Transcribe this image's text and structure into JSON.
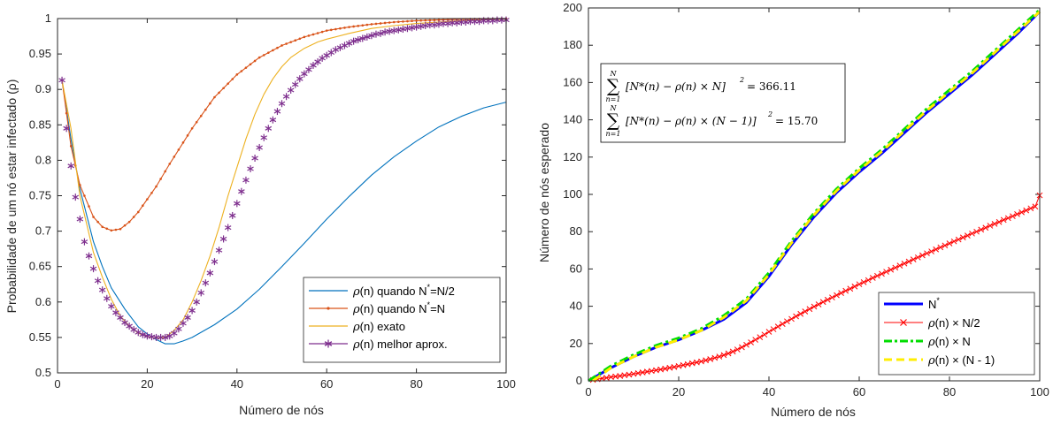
{
  "chart_data": [
    {
      "type": "line",
      "xlabel": "Número de nós",
      "ylabel": "Probabilidade de um nó estar infectado (ρ)",
      "xlim": [
        0,
        100
      ],
      "ylim": [
        0.5,
        1
      ],
      "x_ticks": [
        "0",
        "20",
        "40",
        "60",
        "80",
        "100"
      ],
      "y_ticks": [
        "0.5",
        "0.55",
        "0.6",
        "0.65",
        "0.7",
        "0.75",
        "0.8",
        "0.85",
        "0.9",
        "0.95",
        "1"
      ],
      "legend_position": "bottom-right",
      "series": [
        {
          "name": "ρ(n) quando N*=N/2",
          "legend_text": "quando N",
          "legend_sup": "*",
          "legend_tail": "=N/2",
          "color": "#0072bd",
          "marker": "none",
          "x": [
            1,
            3,
            5,
            8,
            10,
            12,
            15,
            18,
            20,
            22,
            24,
            26,
            28,
            30,
            35,
            40,
            45,
            50,
            55,
            60,
            65,
            70,
            75,
            80,
            85,
            90,
            95,
            100
          ],
          "y": [
            0.913,
            0.83,
            0.76,
            0.685,
            0.65,
            0.62,
            0.59,
            0.565,
            0.555,
            0.547,
            0.541,
            0.541,
            0.545,
            0.55,
            0.568,
            0.59,
            0.618,
            0.65,
            0.683,
            0.717,
            0.749,
            0.779,
            0.805,
            0.827,
            0.847,
            0.862,
            0.874,
            0.882
          ]
        },
        {
          "name": "ρ(n) quando N*=N",
          "legend_text": "quando N",
          "legend_sup": "*",
          "legend_tail": "=N",
          "color": "#d95319",
          "marker": "dot",
          "x": [
            1,
            3,
            5,
            8,
            10,
            12,
            14,
            16,
            18,
            20,
            22,
            25,
            28,
            30,
            35,
            40,
            45,
            50,
            55,
            60,
            65,
            70,
            75,
            80,
            85,
            90,
            95,
            100
          ],
          "y": [
            0.913,
            0.82,
            0.765,
            0.72,
            0.706,
            0.701,
            0.703,
            0.713,
            0.727,
            0.745,
            0.763,
            0.795,
            0.825,
            0.845,
            0.889,
            0.921,
            0.945,
            0.962,
            0.974,
            0.983,
            0.988,
            0.992,
            0.995,
            0.997,
            0.998,
            0.999,
            0.9995,
            1.0
          ]
        },
        {
          "name": "ρ(n) exato",
          "legend_text": "exato",
          "legend_sup": "",
          "legend_tail": "",
          "color": "#edb120",
          "marker": "none",
          "x": [
            1,
            3,
            5,
            8,
            10,
            12,
            14,
            16,
            18,
            20,
            22,
            24,
            26,
            28,
            30,
            32,
            34,
            36,
            38,
            40,
            42,
            44,
            46,
            48,
            50,
            52,
            55,
            58,
            60,
            65,
            70,
            75,
            80,
            85,
            90,
            95,
            100
          ],
          "y": [
            0.913,
            0.845,
            0.75,
            0.67,
            0.635,
            0.604,
            0.58,
            0.566,
            0.556,
            0.551,
            0.549,
            0.55,
            0.56,
            0.575,
            0.6,
            0.63,
            0.665,
            0.705,
            0.75,
            0.79,
            0.83,
            0.865,
            0.893,
            0.915,
            0.932,
            0.945,
            0.958,
            0.967,
            0.971,
            0.979,
            0.986,
            0.99,
            0.993,
            0.995,
            0.997,
            0.998,
            0.999
          ]
        },
        {
          "name": "ρ(n) melhor aprox.",
          "legend_text": "melhor aprox.",
          "legend_sup": "",
          "legend_tail": "",
          "color": "#7e2f8e",
          "marker": "asterisk",
          "x": [
            1,
            2,
            3,
            4,
            5,
            6,
            7,
            8,
            9,
            10,
            11,
            12,
            13,
            14,
            15,
            16,
            17,
            18,
            19,
            20,
            21,
            22,
            23,
            24,
            25,
            26,
            27,
            28,
            29,
            30,
            31,
            32,
            33,
            34,
            35,
            36,
            37,
            38,
            39,
            40,
            41,
            42,
            43,
            44,
            45,
            46,
            47,
            48,
            49,
            50,
            51,
            52,
            53,
            54,
            55,
            56,
            57,
            58,
            59,
            60,
            61,
            62,
            63,
            64,
            65,
            66,
            67,
            68,
            69,
            70,
            71,
            72,
            73,
            74,
            75,
            76,
            77,
            78,
            79,
            80,
            81,
            82,
            83,
            84,
            85,
            86,
            87,
            88,
            89,
            90,
            91,
            92,
            93,
            94,
            95,
            96,
            97,
            98,
            99,
            100
          ],
          "y": [
            0.913,
            0.845,
            0.792,
            0.748,
            0.717,
            0.685,
            0.665,
            0.647,
            0.63,
            0.617,
            0.605,
            0.594,
            0.585,
            0.578,
            0.571,
            0.566,
            0.561,
            0.557,
            0.554,
            0.552,
            0.551,
            0.55,
            0.55,
            0.55,
            0.552,
            0.556,
            0.562,
            0.57,
            0.578,
            0.588,
            0.6,
            0.613,
            0.627,
            0.641,
            0.657,
            0.673,
            0.689,
            0.705,
            0.722,
            0.739,
            0.756,
            0.772,
            0.788,
            0.803,
            0.818,
            0.832,
            0.845,
            0.857,
            0.869,
            0.88,
            0.89,
            0.899,
            0.907,
            0.915,
            0.922,
            0.928,
            0.934,
            0.939,
            0.944,
            0.948,
            0.952,
            0.956,
            0.959,
            0.962,
            0.965,
            0.968,
            0.97,
            0.972,
            0.974,
            0.976,
            0.978,
            0.979,
            0.981,
            0.982,
            0.983,
            0.984,
            0.985,
            0.986,
            0.987,
            0.988,
            0.989,
            0.99,
            0.991,
            0.991,
            0.992,
            0.993,
            0.993,
            0.994,
            0.994,
            0.995,
            0.995,
            0.996,
            0.996,
            0.996,
            0.997,
            0.997,
            0.997,
            0.998,
            0.998,
            0.998
          ]
        }
      ]
    },
    {
      "type": "line",
      "xlabel": "Número de nós",
      "ylabel": "Número de nós esperado",
      "xlim": [
        0,
        100
      ],
      "ylim": [
        0,
        200
      ],
      "x_ticks": [
        "0",
        "20",
        "40",
        "60",
        "80",
        "100"
      ],
      "y_ticks": [
        "0",
        "20",
        "40",
        "60",
        "80",
        "100",
        "120",
        "140",
        "160",
        "180",
        "200"
      ],
      "legend_position": "bottom-right",
      "annotations": {
        "sum1_value": "= 366.11",
        "sum2_value": "= 15.70",
        "sum1_body": "[N*(n) − ρ(n) × N]",
        "sum2_body": "[N*(n) − ρ(n) × (N − 1)]",
        "sigma": "∑",
        "upper": "N",
        "lower": "n=1",
        "square": "2"
      },
      "series": [
        {
          "name": "N*",
          "legend_text": "N",
          "legend_sup": "*",
          "color": "#0000ff",
          "dash": "solid",
          "width": 3,
          "marker": "none",
          "x": [
            0,
            5,
            10,
            15,
            20,
            25,
            30,
            35,
            40,
            45,
            50,
            55,
            60,
            65,
            70,
            75,
            80,
            85,
            90,
            95,
            100
          ],
          "y": [
            0,
            7,
            13,
            18,
            22,
            27,
            33,
            42,
            56,
            73,
            88,
            101,
            112,
            122,
            133,
            144,
            154,
            164,
            175,
            186,
            198
          ]
        },
        {
          "name": "ρ(n) × N/2",
          "legend_text": "ρ(n)  × N/2",
          "legend_sup": "",
          "color": "#ff0000",
          "dash": "solid",
          "width": 1,
          "marker": "x",
          "x": [
            1,
            2,
            3,
            4,
            5,
            6,
            7,
            8,
            9,
            10,
            11,
            12,
            13,
            14,
            15,
            16,
            17,
            18,
            19,
            20,
            21,
            22,
            23,
            24,
            25,
            26,
            27,
            28,
            29,
            30,
            31,
            32,
            33,
            34,
            35,
            36,
            37,
            38,
            39,
            40,
            41,
            42,
            43,
            44,
            45,
            46,
            47,
            48,
            49,
            50,
            51,
            52,
            53,
            54,
            55,
            56,
            57,
            58,
            59,
            60,
            61,
            62,
            63,
            64,
            65,
            66,
            67,
            68,
            69,
            70,
            71,
            72,
            73,
            74,
            75,
            76,
            77,
            78,
            79,
            80,
            81,
            82,
            83,
            84,
            85,
            86,
            87,
            88,
            89,
            90,
            91,
            92,
            93,
            94,
            95,
            96,
            97,
            98,
            99,
            100
          ],
          "y": [
            0.5,
            0.9,
            1.3,
            1.6,
            2.0,
            2.3,
            2.6,
            3.0,
            3.3,
            3.7,
            4.1,
            4.5,
            4.9,
            5.3,
            5.7,
            6.1,
            6.5,
            7.0,
            7.4,
            7.9,
            8.4,
            8.9,
            9.4,
            9.9,
            10.4,
            11.0,
            11.6,
            12.3,
            13.0,
            13.8,
            14.7,
            15.7,
            16.8,
            18.0,
            19.3,
            20.6,
            22.0,
            23.4,
            24.8,
            26.3,
            27.7,
            29.1,
            30.5,
            31.9,
            33.2,
            34.6,
            35.9,
            37.2,
            38.5,
            39.8,
            41.0,
            42.3,
            43.5,
            44.7,
            45.9,
            47.1,
            48.3,
            49.4,
            50.6,
            51.8,
            52.9,
            54.0,
            55.2,
            56.3,
            57.4,
            58.5,
            59.6,
            60.7,
            61.8,
            62.9,
            64.0,
            65.1,
            66.2,
            67.3,
            68.4,
            69.4,
            70.5,
            71.6,
            72.6,
            73.7,
            74.8,
            75.8,
            76.9,
            77.9,
            79.0,
            80.0,
            81.1,
            82.1,
            83.2,
            84.2,
            85.2,
            86.3,
            87.3,
            88.3,
            89.4,
            90.4,
            91.4,
            92.5,
            93.5,
            99.5
          ]
        },
        {
          "name": "ρ(n) × N",
          "legend_text": "ρ(n)  × N",
          "legend_sup": "",
          "color": "#00dd00",
          "dash": "dashdot",
          "width": 3,
          "marker": "none",
          "x": [
            0,
            5,
            10,
            15,
            20,
            25,
            30,
            35,
            40,
            45,
            50,
            55,
            60,
            65,
            70,
            75,
            80,
            85,
            90,
            95,
            100
          ],
          "y": [
            0,
            8,
            14,
            19,
            23,
            28,
            35,
            44,
            58,
            75,
            90,
            103,
            114,
            124,
            135,
            146,
            156,
            166,
            177,
            188,
            199
          ]
        },
        {
          "name": "ρ(n) × (N - 1)",
          "legend_text": "ρ(n)  × (N - 1)",
          "legend_sup": "",
          "color": "#ffee00",
          "dash": "dashed",
          "width": 3,
          "marker": "none",
          "x": [
            1,
            5,
            10,
            15,
            20,
            25,
            30,
            35,
            40,
            45,
            50,
            55,
            60,
            65,
            70,
            75,
            80,
            85,
            90,
            95,
            100
          ],
          "y": [
            0,
            7,
            13,
            18,
            22,
            27,
            34,
            43,
            57,
            74,
            89,
            102,
            113,
            123,
            134,
            145,
            155,
            165,
            176,
            187,
            198
          ]
        }
      ]
    }
  ]
}
